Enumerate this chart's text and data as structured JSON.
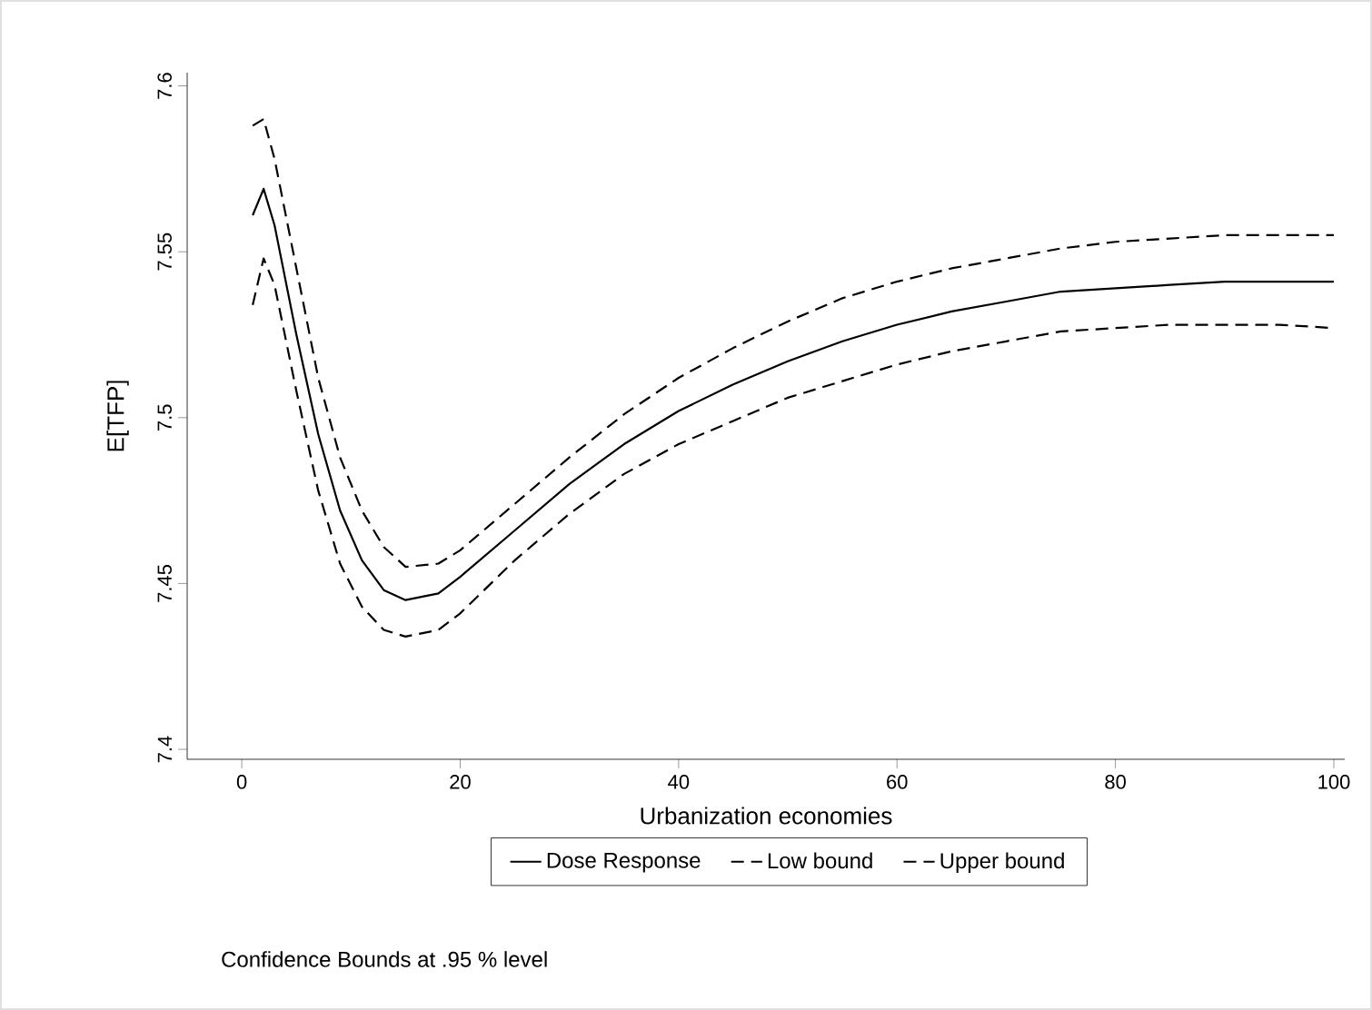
{
  "chart_data": {
    "type": "line",
    "xlabel": "Urbanization economies",
    "ylabel": "E[TFP]",
    "x": [
      1,
      2,
      3,
      5,
      7,
      9,
      11,
      13,
      15,
      18,
      20,
      25,
      30,
      35,
      40,
      45,
      50,
      55,
      60,
      65,
      70,
      75,
      80,
      85,
      90,
      95,
      100
    ],
    "xlim": [
      -5,
      101
    ],
    "xticks": [
      0,
      20,
      40,
      60,
      80,
      100
    ],
    "ylim": [
      7.397,
      7.604
    ],
    "yticks": [
      7.4,
      7.45,
      7.5,
      7.55,
      7.6
    ],
    "grid": false,
    "legend": "bottom",
    "marker": "none",
    "series": [
      {
        "name": "Dose Response",
        "color": "#000000",
        "line_style": "solid",
        "values": [
          7.561,
          7.569,
          7.558,
          7.525,
          7.495,
          7.472,
          7.457,
          7.448,
          7.445,
          7.447,
          7.452,
          7.466,
          7.48,
          7.492,
          7.502,
          7.51,
          7.517,
          7.523,
          7.528,
          7.532,
          7.535,
          7.538,
          7.539,
          7.54,
          7.541,
          7.541,
          7.541
        ]
      },
      {
        "name": "Low bound",
        "color": "#000000",
        "line_style": "dashed",
        "values": [
          7.588,
          7.59,
          7.578,
          7.545,
          7.512,
          7.488,
          7.472,
          7.461,
          7.455,
          7.456,
          7.46,
          7.474,
          7.488,
          7.501,
          7.512,
          7.521,
          7.529,
          7.536,
          7.541,
          7.545,
          7.548,
          7.551,
          7.553,
          7.554,
          7.555,
          7.555,
          7.555
        ]
      },
      {
        "name": "Upper bound",
        "color": "#000000",
        "line_style": "dashed",
        "values": [
          7.534,
          7.548,
          7.54,
          7.508,
          7.478,
          7.456,
          7.443,
          7.436,
          7.434,
          7.436,
          7.441,
          7.457,
          7.471,
          7.483,
          7.492,
          7.499,
          7.506,
          7.511,
          7.516,
          7.52,
          7.523,
          7.526,
          7.527,
          7.528,
          7.528,
          7.528,
          7.527
        ]
      }
    ],
    "annotations": [
      "Confidence Bounds at .95 % level"
    ]
  }
}
